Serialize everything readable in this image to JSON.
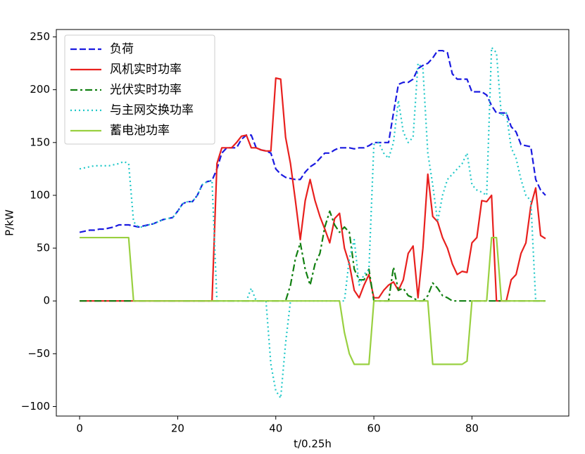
{
  "chart_data": {
    "type": "line",
    "xlabel": "t/0.25h",
    "ylabel": "P/kW",
    "xlim": [
      -4.75,
      99.75
    ],
    "ylim": [
      -109,
      257
    ],
    "xticks": [
      0,
      20,
      40,
      60,
      80
    ],
    "yticks": [
      {
        "value": -100,
        "label": "−100"
      },
      {
        "value": -50,
        "label": "−50"
      },
      0,
      50,
      100,
      150,
      200,
      250
    ],
    "legend": "upper left",
    "x": [
      0,
      1,
      2,
      3,
      4,
      5,
      6,
      7,
      8,
      9,
      10,
      11,
      12,
      13,
      14,
      15,
      16,
      17,
      18,
      19,
      20,
      21,
      22,
      23,
      24,
      25,
      26,
      27,
      28,
      29,
      30,
      31,
      32,
      33,
      34,
      35,
      36,
      37,
      38,
      39,
      40,
      41,
      42,
      43,
      44,
      45,
      46,
      47,
      48,
      49,
      50,
      51,
      52,
      53,
      54,
      55,
      56,
      57,
      58,
      59,
      60,
      61,
      62,
      63,
      64,
      65,
      66,
      67,
      68,
      69,
      70,
      71,
      72,
      73,
      74,
      75,
      76,
      77,
      78,
      79,
      80,
      81,
      82,
      83,
      84,
      85,
      86,
      87,
      88,
      89,
      90,
      91,
      92,
      93,
      94,
      95
    ],
    "series": [
      {
        "name": "负荷",
        "color": "#1a1ae0",
        "dash": "dashed",
        "values": [
          65,
          66,
          67,
          67,
          68,
          68,
          69,
          70,
          72,
          72,
          72,
          71,
          70,
          71,
          72,
          73,
          75,
          77,
          78,
          79,
          85,
          92,
          94,
          94,
          100,
          110,
          113,
          114,
          125,
          140,
          145,
          145,
          145,
          153,
          157,
          157,
          145,
          143,
          142,
          140,
          125,
          120,
          117,
          116,
          115,
          115,
          122,
          127,
          130,
          135,
          140,
          140,
          143,
          145,
          145,
          145,
          144,
          145,
          145,
          147,
          150,
          150,
          150,
          150,
          178,
          205,
          207,
          207,
          210,
          220,
          223,
          225,
          230,
          237,
          237,
          235,
          215,
          210,
          210,
          210,
          198,
          198,
          198,
          195,
          185,
          178,
          178,
          178,
          165,
          160,
          148,
          147,
          146,
          115,
          105,
          100
        ]
      },
      {
        "name": "风机实时功率",
        "color": "#e8201e",
        "dash": "solid",
        "values": [
          0,
          0,
          0,
          0,
          0,
          0,
          0,
          0,
          0,
          0,
          0,
          0,
          0,
          0,
          0,
          0,
          0,
          0,
          0,
          0,
          0,
          0,
          0,
          0,
          0,
          0,
          0,
          0,
          130,
          145,
          145,
          145,
          150,
          156,
          157,
          145,
          145,
          143,
          142,
          142,
          211,
          210,
          155,
          130,
          95,
          58,
          95,
          115,
          95,
          80,
          68,
          55,
          78,
          83,
          50,
          35,
          10,
          3,
          15,
          25,
          3,
          3,
          10,
          15,
          18,
          10,
          20,
          45,
          52,
          3,
          50,
          120,
          80,
          75,
          60,
          50,
          35,
          25,
          28,
          27,
          55,
          60,
          95,
          94,
          100,
          0,
          0,
          0,
          20,
          25,
          45,
          55,
          90,
          107,
          62,
          59
        ]
      },
      {
        "name": "光伏实时功率",
        "color": "#128012",
        "dash": "dashdot",
        "values": [
          0,
          0,
          0,
          0,
          0,
          0,
          0,
          0,
          0,
          0,
          0,
          0,
          0,
          0,
          0,
          0,
          0,
          0,
          0,
          0,
          0,
          0,
          0,
          0,
          0,
          0,
          0,
          0,
          0,
          0,
          0,
          0,
          0,
          0,
          0,
          0,
          0,
          0,
          0,
          0,
          0,
          0,
          0,
          15,
          40,
          55,
          30,
          15,
          35,
          45,
          70,
          85,
          72,
          65,
          70,
          65,
          30,
          20,
          20,
          30,
          0,
          0,
          0,
          0,
          32,
          10,
          12,
          5,
          3,
          0,
          0,
          5,
          17,
          12,
          5,
          3,
          0,
          0,
          0,
          0,
          0,
          0,
          0,
          0,
          0,
          0,
          0,
          0,
          0,
          0,
          0,
          0,
          0,
          0,
          0,
          0
        ]
      },
      {
        "name": "与主网交换功率",
        "color": "#20c8c8",
        "dash": "dotted",
        "values": [
          125,
          126,
          127,
          128,
          128,
          128,
          128,
          129,
          130,
          132,
          130,
          75,
          70,
          70,
          72,
          73,
          75,
          77,
          78,
          79,
          85,
          92,
          94,
          94,
          100,
          110,
          113,
          114,
          0,
          0,
          0,
          0,
          0,
          0,
          0,
          12,
          0,
          0,
          0,
          -60,
          -85,
          -92,
          -40,
          0,
          0,
          0,
          0,
          0,
          0,
          0,
          0,
          0,
          0,
          0,
          0,
          40,
          58,
          15,
          25,
          30,
          148,
          150,
          140,
          135,
          150,
          190,
          160,
          150,
          155,
          225,
          220,
          140,
          110,
          75,
          100,
          115,
          120,
          125,
          130,
          140,
          110,
          105,
          103,
          100,
          240,
          235,
          175,
          178,
          145,
          135,
          115,
          100,
          95,
          0,
          0,
          0
        ]
      },
      {
        "name": "蓄电池功率",
        "color": "#99d040",
        "dash": "solid",
        "values": [
          60,
          60,
          60,
          60,
          60,
          60,
          60,
          60,
          60,
          60,
          60,
          0,
          0,
          0,
          0,
          0,
          0,
          0,
          0,
          0,
          0,
          0,
          0,
          0,
          0,
          0,
          0,
          0,
          0,
          0,
          0,
          0,
          0,
          0,
          0,
          0,
          0,
          0,
          0,
          0,
          0,
          0,
          0,
          0,
          0,
          0,
          0,
          0,
          0,
          0,
          0,
          0,
          0,
          0,
          -30,
          -50,
          -60,
          -60,
          -60,
          -60,
          0,
          0,
          0,
          0,
          0,
          0,
          0,
          0,
          0,
          0,
          0,
          0,
          -60,
          -60,
          -60,
          -60,
          -60,
          -60,
          -60,
          -57,
          0,
          0,
          0,
          0,
          60,
          60,
          0,
          0,
          0,
          0,
          0,
          0,
          0,
          0,
          0,
          0
        ]
      }
    ]
  }
}
